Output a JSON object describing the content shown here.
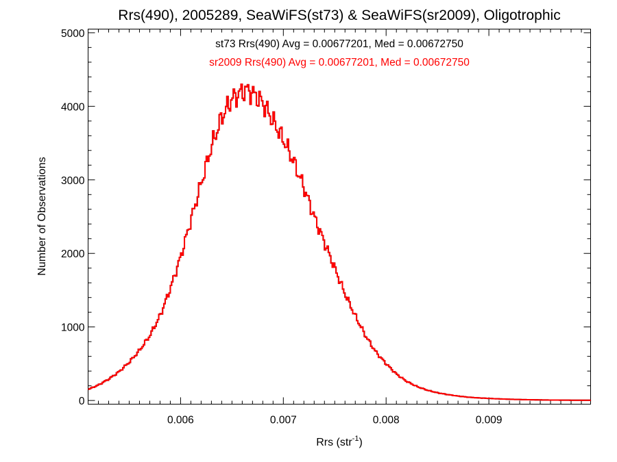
{
  "chart_data": {
    "type": "histogram",
    "title": "Rrs(490), 2005289, SeaWiFS(st73) & SeaWiFS(sr2009), Oligotrophic",
    "xlabel": "Rrs (str",
    "xlabel_sup": "-1",
    "xlabel_suffix": ")",
    "ylabel": "Number of Observations",
    "xlim": [
      0.0051,
      0.00999
    ],
    "ylim": [
      -50,
      5050
    ],
    "xticks": [
      0.006,
      0.007,
      0.008,
      0.009
    ],
    "xtick_labels": [
      "0.006",
      "0.007",
      "0.008",
      "0.009"
    ],
    "yticks": [
      0,
      1000,
      2000,
      3000,
      4000,
      5000
    ],
    "ytick_labels": [
      "0",
      "1000",
      "2000",
      "3000",
      "4000",
      "5000"
    ],
    "grid": false,
    "annotations": [
      {
        "text": "st73 Rrs(490) Avg = 0.00677201, Med = 0.00672750",
        "color": "#000000"
      },
      {
        "text": "sr2009 Rrs(490) Avg = 0.00677201, Med = 0.00672750",
        "color": "#ff0000"
      }
    ],
    "series": [
      {
        "label": "st73",
        "color": "#000000",
        "x": [
          0.0051,
          0.0052,
          0.0053,
          0.0054,
          0.0055,
          0.0056,
          0.0057,
          0.0058,
          0.0059,
          0.006,
          0.0061,
          0.0062,
          0.0063,
          0.0064,
          0.0065,
          0.0066,
          0.00665,
          0.0067,
          0.0068,
          0.0069,
          0.007,
          0.0071,
          0.0072,
          0.0073,
          0.0074,
          0.0075,
          0.0076,
          0.0077,
          0.0078,
          0.0079,
          0.008,
          0.0081,
          0.0082,
          0.0083,
          0.0084,
          0.0085,
          0.0086,
          0.0087,
          0.0088,
          0.0089,
          0.009,
          0.0091,
          0.0092,
          0.0093,
          0.0094,
          0.0095,
          0.0096,
          0.0097,
          0.0098,
          0.0099
        ],
        "y": [
          150,
          210,
          290,
          390,
          520,
          680,
          880,
          1150,
          1520,
          1950,
          2450,
          2950,
          3450,
          3850,
          4100,
          4200,
          4220,
          4180,
          4050,
          3800,
          3550,
          3250,
          2900,
          2500,
          2150,
          1800,
          1450,
          1150,
          880,
          660,
          500,
          360,
          260,
          190,
          140,
          105,
          80,
          60,
          45,
          35,
          28,
          22,
          17,
          13,
          10,
          8,
          6,
          5,
          4,
          3
        ]
      },
      {
        "label": "sr2009",
        "color": "#ff0000",
        "x": [
          0.0051,
          0.0052,
          0.0053,
          0.0054,
          0.0055,
          0.0056,
          0.0057,
          0.0058,
          0.0059,
          0.006,
          0.0061,
          0.0062,
          0.0063,
          0.0064,
          0.0065,
          0.0066,
          0.00665,
          0.0067,
          0.0068,
          0.0069,
          0.007,
          0.0071,
          0.0072,
          0.0073,
          0.0074,
          0.0075,
          0.0076,
          0.0077,
          0.0078,
          0.0079,
          0.008,
          0.0081,
          0.0082,
          0.0083,
          0.0084,
          0.0085,
          0.0086,
          0.0087,
          0.0088,
          0.0089,
          0.009,
          0.0091,
          0.0092,
          0.0093,
          0.0094,
          0.0095,
          0.0096,
          0.0097,
          0.0098,
          0.0099
        ],
        "y": [
          150,
          210,
          290,
          390,
          520,
          680,
          880,
          1150,
          1520,
          1950,
          2450,
          2950,
          3450,
          3850,
          4100,
          4200,
          4220,
          4180,
          4050,
          3800,
          3550,
          3250,
          2900,
          2500,
          2150,
          1800,
          1450,
          1150,
          880,
          660,
          500,
          360,
          260,
          190,
          140,
          105,
          80,
          60,
          45,
          35,
          28,
          22,
          17,
          13,
          10,
          8,
          6,
          5,
          4,
          3
        ]
      }
    ]
  }
}
